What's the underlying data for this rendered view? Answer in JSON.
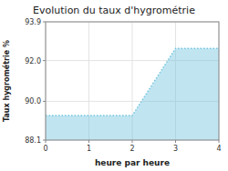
{
  "chart_data": {
    "type": "area",
    "title": "Evolution du taux d'hygrométrie",
    "xlabel": "heure par heure",
    "ylabel": "Taux hygrométrie %",
    "x": [
      0,
      2,
      2,
      3,
      4
    ],
    "values": [
      89.3,
      89.3,
      89.3,
      92.6,
      92.6
    ],
    "color": "#74c6df",
    "line_style": "dotted",
    "xlim": [
      0,
      4
    ],
    "ylim": [
      88.1,
      93.9
    ],
    "xticks": [
      0,
      1,
      2,
      3,
      4
    ],
    "yticks": [
      88.1,
      {
        "value": 90,
        "label": "90.0"
      },
      {
        "value": 92,
        "label": "92.0"
      },
      93.9
    ],
    "grid": true
  }
}
